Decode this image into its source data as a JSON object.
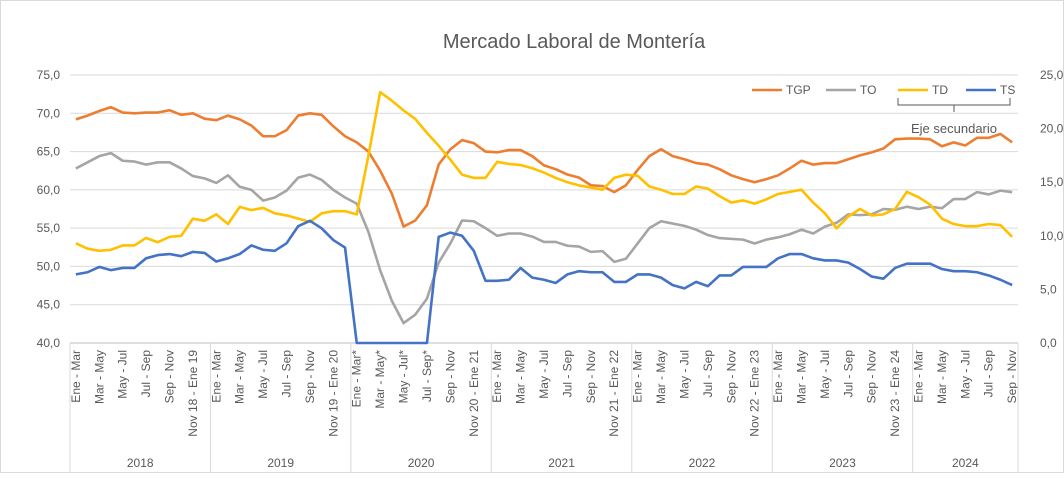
{
  "chart_data": {
    "type": "line",
    "title": "Mercado Laboral de Montería",
    "annotation": "Eje secundario",
    "categories": [
      "Ene - Mar",
      null,
      "Mar - May",
      null,
      "May - Jul",
      null,
      "Jul - Sep",
      null,
      "Sep - Nov",
      null,
      "Nov 18 - Ene 19",
      null,
      "Ene - Mar",
      null,
      "Mar - May",
      null,
      "May - Jul",
      null,
      "Jul - Sep",
      null,
      "Sep - Nov",
      null,
      "Nov 19 - Ene 20",
      null,
      "Ene - Mar*",
      null,
      "Mar - May*",
      null,
      "May - Jul*",
      null,
      "Jul - Sep*",
      null,
      "Sep - Nov",
      null,
      "Nov 20 - Ene 21",
      null,
      "Ene - Mar",
      null,
      "Mar - May",
      null,
      "May - Jul",
      null,
      "Jul - Sep",
      null,
      "Sep - Nov",
      null,
      "Nov 21 - Ene 22",
      null,
      "Ene - Mar",
      null,
      "Mar - May",
      null,
      "May - Jul",
      null,
      "Jul - Sep",
      null,
      "Sep - Nov",
      null,
      "Nov 22 - Ene 23",
      null,
      "Ene - Mar",
      null,
      "Mar - May",
      null,
      "May - Jul",
      null,
      "Jul - Sep",
      null,
      "Sep - Nov",
      null,
      "Nov 23 - Ene 24",
      null,
      "Ene - Mar",
      null,
      "Mar - May",
      null,
      "May - Jul",
      null,
      "Jul - Sep",
      null,
      "Sep - Nov"
    ],
    "year_groups": [
      "2018",
      "2019",
      "2020",
      "2021",
      "2022",
      "2023",
      "2024"
    ],
    "ylim": [
      40,
      75
    ],
    "yticks": [
      {
        "value": 40,
        "label": "40,0"
      },
      {
        "value": 45,
        "label": "45,0"
      },
      {
        "value": 50,
        "label": "50,0"
      },
      {
        "value": 55,
        "label": "55,0"
      },
      {
        "value": 60,
        "label": "60,0"
      },
      {
        "value": 65,
        "label": "65,0"
      },
      {
        "value": 70,
        "label": "70,0"
      },
      {
        "value": 75,
        "label": "75,0"
      }
    ],
    "y2lim": [
      0,
      25
    ],
    "y2ticks": [
      {
        "value": 0,
        "label": "0,0"
      },
      {
        "value": 5,
        "label": "5,0"
      },
      {
        "value": 10,
        "label": "10,0"
      },
      {
        "value": 15,
        "label": "15,0"
      },
      {
        "value": 20,
        "label": "20,0"
      },
      {
        "value": 25,
        "label": "25,0"
      }
    ],
    "grid": true,
    "series": [
      {
        "name": "TGP",
        "color": "#ed7d31",
        "values": [
          69.2,
          69.7,
          70.3,
          70.8,
          70.1,
          70.0,
          70.1,
          70.1,
          70.4,
          69.8,
          70.0,
          69.3,
          69.1,
          69.7,
          69.2,
          68.4,
          67.0,
          67.0,
          67.8,
          69.7,
          70.0,
          69.8,
          68.3,
          67.0,
          66.2,
          65.0,
          62.5,
          59.5,
          55.2,
          56.0,
          58.0,
          63.3,
          65.3,
          66.5,
          66.1,
          65.0,
          64.9,
          65.2,
          65.2,
          64.4,
          63.2,
          62.7,
          62.0,
          61.6,
          60.6,
          60.5,
          59.7,
          60.6,
          62.6,
          64.4,
          65.3,
          64.4,
          64.0,
          63.5,
          63.3,
          62.7,
          61.9,
          61.4,
          61.0,
          61.4,
          61.9,
          62.8,
          63.8,
          63.3,
          63.5,
          63.5,
          64.0,
          64.5,
          64.9,
          65.4,
          66.6,
          66.7,
          66.7,
          66.6,
          65.7,
          66.2,
          65.8,
          66.8,
          66.8,
          67.3,
          66.2
        ]
      },
      {
        "name": "TO",
        "color": "#a5a5a5",
        "values": [
          62.8,
          63.6,
          64.4,
          64.8,
          63.8,
          63.7,
          63.3,
          63.6,
          63.6,
          62.8,
          61.8,
          61.5,
          60.9,
          61.9,
          60.4,
          60.0,
          58.6,
          59.0,
          59.9,
          61.6,
          62.0,
          61.3,
          60.0,
          59.0,
          58.2,
          54.5,
          49.5,
          45.5,
          42.6,
          43.7,
          45.8,
          50.5,
          53.0,
          56.0,
          55.9,
          55.0,
          54.0,
          54.3,
          54.3,
          53.9,
          53.2,
          53.2,
          52.7,
          52.6,
          51.9,
          52.0,
          50.6,
          51.0,
          53.0,
          55.0,
          55.9,
          55.6,
          55.3,
          54.8,
          54.1,
          53.7,
          53.6,
          53.5,
          53.0,
          53.5,
          53.8,
          54.2,
          54.8,
          54.3,
          55.2,
          55.7,
          56.8,
          56.7,
          56.8,
          57.5,
          57.4,
          57.8,
          57.5,
          57.8,
          57.6,
          58.8,
          58.8,
          59.7,
          59.4,
          59.9,
          59.7
        ]
      },
      {
        "name": "TD",
        "color": "#ffc000",
        "axis": "y2",
        "values": [
          9.3,
          8.8,
          8.6,
          8.7,
          9.1,
          9.1,
          9.8,
          9.4,
          9.9,
          10.0,
          11.6,
          11.4,
          12.0,
          11.1,
          12.7,
          12.4,
          12.6,
          12.1,
          11.9,
          11.6,
          11.3,
          12.1,
          12.3,
          12.3,
          12.0,
          17.5,
          23.4,
          22.6,
          21.7,
          20.9,
          19.6,
          18.4,
          17.1,
          15.7,
          15.4,
          15.4,
          16.9,
          16.7,
          16.6,
          16.3,
          15.9,
          15.4,
          15.0,
          14.7,
          14.5,
          14.3,
          15.4,
          15.7,
          15.6,
          14.6,
          14.3,
          13.9,
          13.9,
          14.6,
          14.4,
          13.7,
          13.1,
          13.3,
          13.0,
          13.4,
          13.9,
          14.1,
          14.3,
          13.1,
          12.1,
          10.7,
          11.8,
          12.5,
          11.9,
          12.0,
          12.5,
          14.1,
          13.6,
          12.9,
          11.6,
          11.1,
          10.9,
          10.9,
          11.1,
          11.0,
          9.9
        ]
      },
      {
        "name": "TS",
        "color": "#4472c4",
        "axis": "y2",
        "values": [
          6.4,
          6.6,
          7.1,
          6.8,
          7.0,
          7.0,
          7.9,
          8.2,
          8.3,
          8.1,
          8.5,
          8.4,
          7.6,
          7.9,
          8.3,
          9.1,
          8.7,
          8.6,
          9.3,
          10.9,
          11.4,
          10.7,
          9.6,
          8.9,
          0,
          0,
          0,
          0,
          0,
          0,
          0,
          9.9,
          10.3,
          10.0,
          8.6,
          5.8,
          5.8,
          5.9,
          7.0,
          6.1,
          5.9,
          5.6,
          6.4,
          6.7,
          6.6,
          6.6,
          5.7,
          5.7,
          6.4,
          6.4,
          6.1,
          5.4,
          5.1,
          5.7,
          5.3,
          6.3,
          6.3,
          7.1,
          7.1,
          7.1,
          7.9,
          8.3,
          8.3,
          7.9,
          7.7,
          7.7,
          7.5,
          6.9,
          6.2,
          6.0,
          7.0,
          7.4,
          7.4,
          7.4,
          6.9,
          6.7,
          6.7,
          6.6,
          6.3,
          5.9,
          5.4
        ]
      }
    ]
  }
}
